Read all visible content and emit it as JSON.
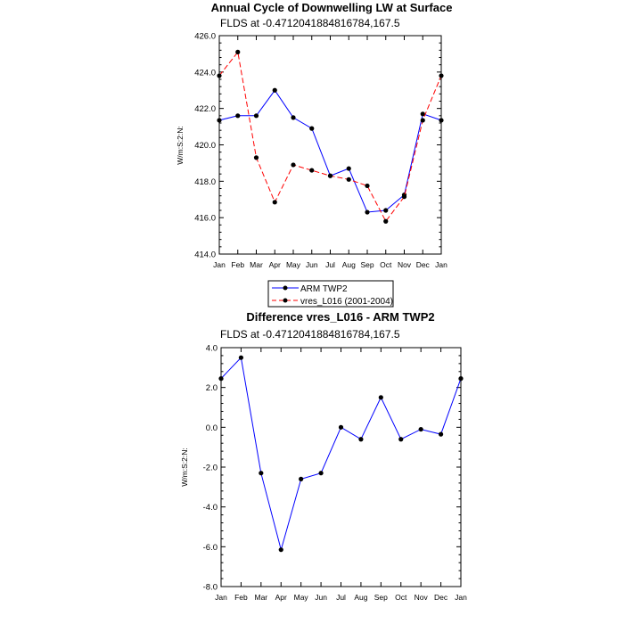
{
  "chart_data": [
    {
      "type": "line",
      "title": "Annual Cycle of Downwelling LW at Surface",
      "subtitle": "FLDS at -0.4712041884816784,167.5",
      "ylabel": "W/m:S:2:N:",
      "xlabel": "",
      "categories": [
        "Jan",
        "Feb",
        "Mar",
        "Apr",
        "May",
        "Jun",
        "Jul",
        "Aug",
        "Sep",
        "Oct",
        "Nov",
        "Dec",
        "Jan"
      ],
      "ylim": [
        414.0,
        426.0
      ],
      "yticks": [
        "414.0",
        "416.0",
        "418.0",
        "420.0",
        "422.0",
        "424.0",
        "426.0"
      ],
      "series": [
        {
          "name": "ARM TWP2",
          "color": "#0000ff",
          "dash": "solid",
          "values": [
            421.35,
            421.6,
            421.6,
            423.0,
            421.5,
            420.9,
            418.3,
            418.7,
            416.3,
            416.4,
            417.25,
            421.7,
            421.35
          ]
        },
        {
          "name": "vres_L016 (2001-2004)",
          "color": "#ff0000",
          "dash": "dashed",
          "values": [
            423.8,
            425.1,
            419.3,
            416.85,
            418.9,
            418.6,
            418.3,
            418.1,
            417.75,
            415.8,
            417.15,
            421.35,
            423.8
          ]
        }
      ],
      "legend": "bottom-center"
    },
    {
      "type": "line",
      "title": "Difference vres_L016 - ARM TWP2",
      "subtitle": "FLDS at -0.4712041884816784,167.5",
      "ylabel": "W/m:S:2:N:",
      "xlabel": "",
      "categories": [
        "Jan",
        "Feb",
        "Mar",
        "Apr",
        "May",
        "Jun",
        "Jul",
        "Aug",
        "Sep",
        "Oct",
        "Nov",
        "Dec",
        "Jan"
      ],
      "ylim": [
        -8.0,
        4.0
      ],
      "yticks": [
        "-8.0",
        "-6.0",
        "-4.0",
        "-2.0",
        "0.0",
        "2.0",
        "4.0"
      ],
      "series": [
        {
          "name": "Difference",
          "color": "#0000ff",
          "dash": "solid",
          "values": [
            2.45,
            3.5,
            -2.3,
            -6.15,
            -2.6,
            -2.3,
            0.0,
            -0.6,
            1.5,
            -0.6,
            -0.1,
            -0.35,
            2.45
          ]
        }
      ]
    }
  ]
}
